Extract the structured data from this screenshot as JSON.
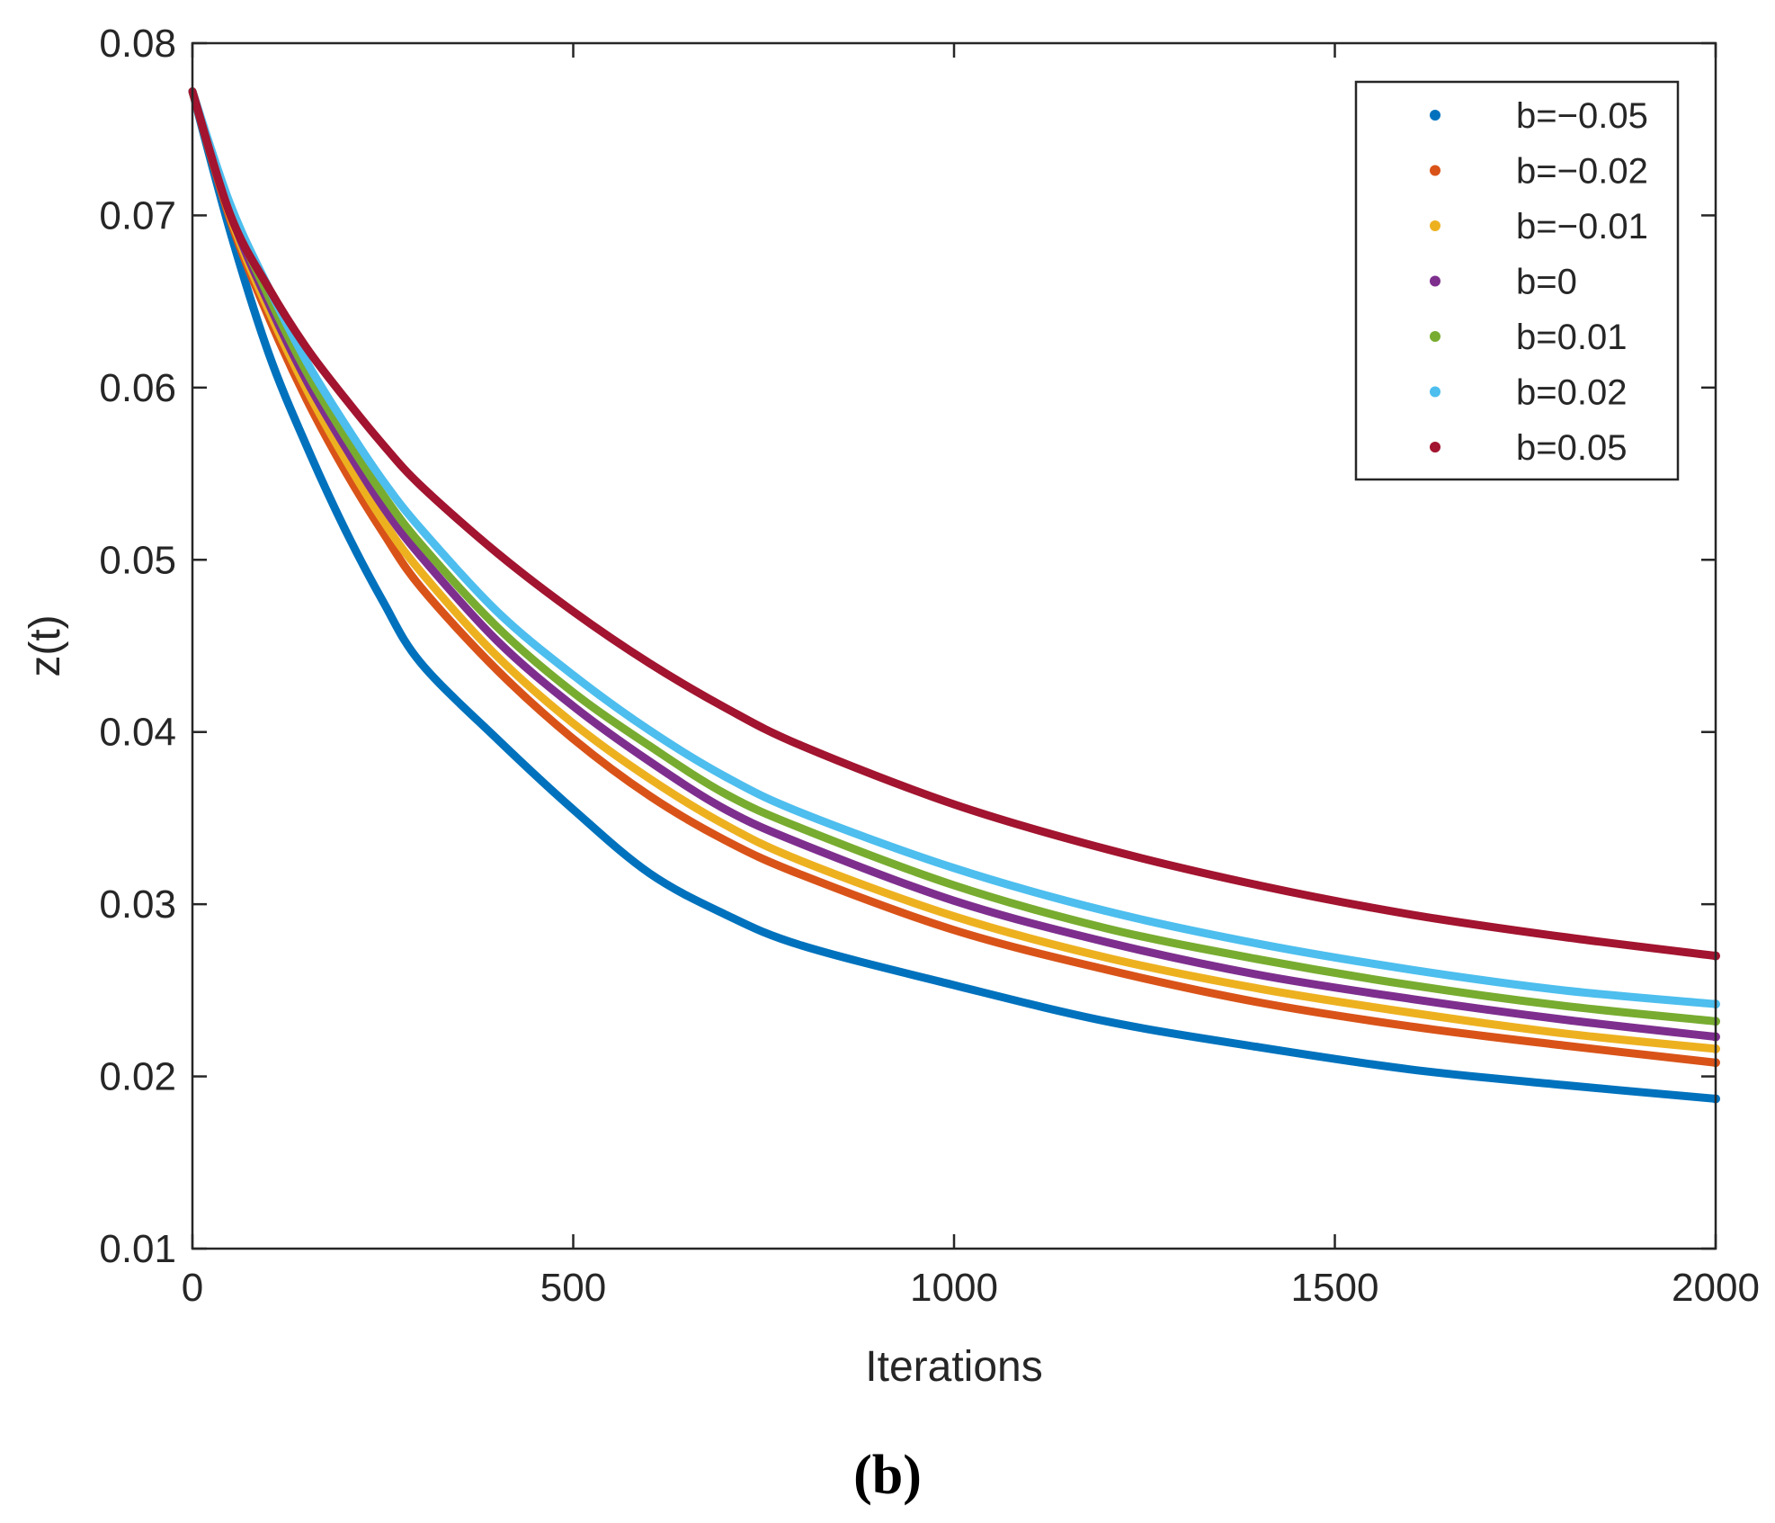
{
  "chart_data": {
    "type": "line",
    "xlabel": "Iterations",
    "ylabel": "z(t)",
    "xlim": [
      0,
      2000
    ],
    "ylim": [
      0.01,
      0.08
    ],
    "x_ticks": [
      "0",
      "500",
      "1000",
      "1500",
      "2000"
    ],
    "y_ticks": [
      "0.01",
      "0.02",
      "0.03",
      "0.04",
      "0.05",
      "0.06",
      "0.07",
      "0.08"
    ],
    "grid": false,
    "legend_position": "top-right",
    "panel_label": "(b)",
    "x": [
      0,
      50,
      100,
      150,
      200,
      250,
      300,
      400,
      500,
      600,
      700,
      800,
      1000,
      1200,
      1400,
      1600,
      1800,
      2000
    ],
    "series": [
      {
        "name": "b=−0.05",
        "color": "#0072BD",
        "values": [
          0.0772,
          0.069,
          0.062,
          0.0566,
          0.0518,
          0.0476,
          0.044,
          0.0396,
          0.0355,
          0.0318,
          0.0294,
          0.0276,
          0.0253,
          0.0232,
          0.0217,
          0.0204,
          0.0195,
          0.0187
        ]
      },
      {
        "name": "b=−0.02",
        "color": "#D95319",
        "values": [
          0.0772,
          0.0697,
          0.0641,
          0.0593,
          0.0552,
          0.0516,
          0.0484,
          0.0436,
          0.0396,
          0.0363,
          0.0337,
          0.0317,
          0.0285,
          0.0262,
          0.0243,
          0.0229,
          0.0218,
          0.0208
        ]
      },
      {
        "name": "b=−0.01",
        "color": "#EDB120",
        "values": [
          0.0772,
          0.0699,
          0.0645,
          0.0599,
          0.0559,
          0.0523,
          0.0493,
          0.0444,
          0.0405,
          0.0373,
          0.0346,
          0.0325,
          0.0293,
          0.0269,
          0.0251,
          0.0237,
          0.0225,
          0.0216
        ]
      },
      {
        "name": "b=0",
        "color": "#7E2F8E",
        "values": [
          0.0772,
          0.0701,
          0.0649,
          0.0604,
          0.0566,
          0.0531,
          0.0502,
          0.0453,
          0.0415,
          0.0383,
          0.0355,
          0.0335,
          0.0302,
          0.0278,
          0.0259,
          0.0245,
          0.0233,
          0.0223
        ]
      },
      {
        "name": "b=0.01",
        "color": "#77AC30",
        "values": [
          0.0772,
          0.0703,
          0.0653,
          0.0609,
          0.0572,
          0.0538,
          0.0509,
          0.0461,
          0.0423,
          0.0392,
          0.0364,
          0.0344,
          0.0311,
          0.0286,
          0.0268,
          0.0253,
          0.0241,
          0.0232
        ]
      },
      {
        "name": "b=0.02",
        "color": "#4DBEEE",
        "values": [
          0.0772,
          0.0706,
          0.0658,
          0.0615,
          0.0579,
          0.0546,
          0.0518,
          0.047,
          0.0433,
          0.0401,
          0.0374,
          0.0353,
          0.0321,
          0.0296,
          0.0277,
          0.0262,
          0.025,
          0.0242
        ]
      },
      {
        "name": "b=0.05",
        "color": "#A2142F",
        "values": [
          0.0772,
          0.07,
          0.0658,
          0.0623,
          0.0594,
          0.0567,
          0.0543,
          0.0504,
          0.047,
          0.044,
          0.0414,
          0.0392,
          0.0358,
          0.0332,
          0.0311,
          0.0294,
          0.0281,
          0.027
        ]
      }
    ]
  }
}
